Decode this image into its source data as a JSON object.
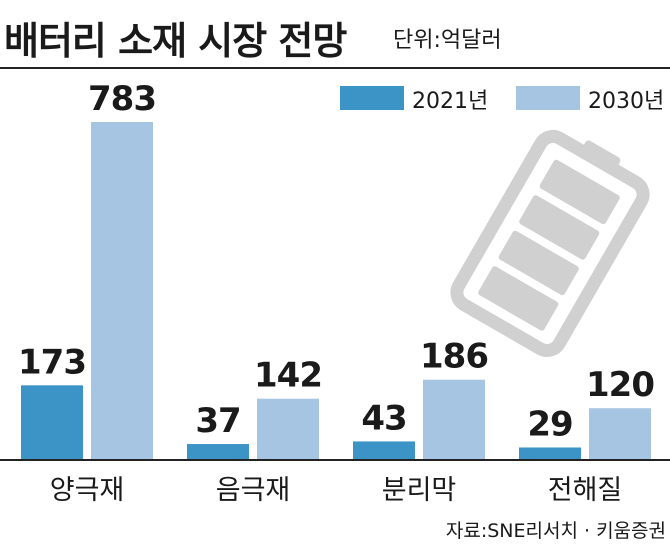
{
  "header": {
    "title": "배터리 소재 시장 전망",
    "unit": "단위:억달러"
  },
  "colors": {
    "series_2021": "#3b93c6",
    "series_2030": "#a6c5e3",
    "battery_icon": "#d0d0d0"
  },
  "chart_data": {
    "type": "bar",
    "title": "배터리 소재 시장 전망",
    "unit": "단위:억달러",
    "categories": [
      "양극재",
      "음극재",
      "분리막",
      "전해질"
    ],
    "series": [
      {
        "name": "2021년",
        "values": [
          173,
          37,
          43,
          29
        ]
      },
      {
        "name": "2030년",
        "values": [
          783,
          142,
          186,
          120
        ]
      }
    ],
    "value_labels": [
      [
        "173",
        "37",
        "43",
        "29"
      ],
      [
        "783",
        "142",
        "186",
        "120"
      ]
    ],
    "legend_position": "top-right",
    "grid": false
  },
  "source": "자료:SNE리서치 · 키움증권",
  "decor": {
    "icon": "battery-icon"
  }
}
